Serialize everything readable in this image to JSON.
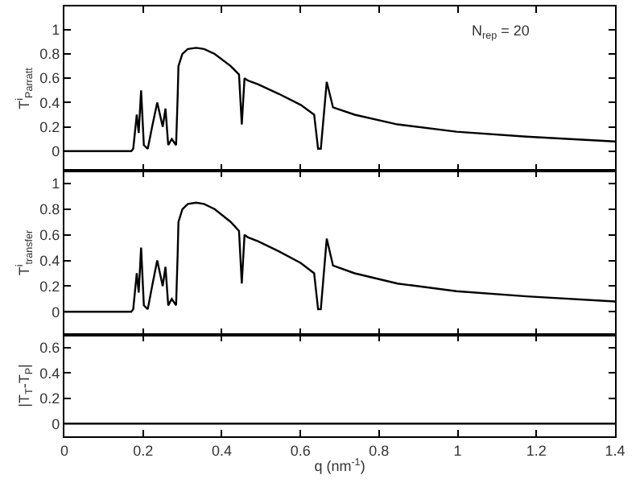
{
  "chart_data": [
    {
      "type": "line",
      "ylabel": "T$^{i}$$_{Parratt}$",
      "annotations": [
        "N$_{rep}$ = 20"
      ],
      "xlim": [
        0,
        1.4
      ],
      "xticks": [
        0,
        0.2,
        0.4,
        0.6,
        0.8,
        1,
        1.2,
        1.4
      ],
      "ylim": [
        -0.16,
        1.19
      ],
      "yticks": [
        0,
        0.2,
        0.4,
        0.6,
        0.8,
        1
      ],
      "tick_labels": "y",
      "series": [
        {
          "color": "#000000",
          "x": [
            0,
            0.17,
            0.175,
            0.184,
            0.189,
            0.195,
            0.202,
            0.212,
            0.223,
            0.236,
            0.25,
            0.257,
            0.264,
            0.273,
            0.284,
            0.288,
            0.29,
            0.3,
            0.314,
            0.335,
            0.355,
            0.382,
            0.423,
            0.444,
            0.451,
            0.458,
            0.467,
            0.492,
            0.546,
            0.601,
            0.635,
            0.645,
            0.652,
            0.667,
            0.683,
            0.738,
            0.847,
            0.997,
            1.175,
            1.4
          ],
          "values": [
            0,
            0,
            0.02,
            0.3,
            0.15,
            0.5,
            0.05,
            0.02,
            0.2,
            0.4,
            0.2,
            0.35,
            0.05,
            0.1,
            0.05,
            0.45,
            0.7,
            0.8,
            0.84,
            0.85,
            0.84,
            0.8,
            0.7,
            0.63,
            0.22,
            0.6,
            0.58,
            0.55,
            0.47,
            0.38,
            0.3,
            0.02,
            0.02,
            0.57,
            0.36,
            0.3,
            0.22,
            0.16,
            0.12,
            0.08
          ]
        }
      ]
    },
    {
      "type": "line",
      "ylabel": "T$^{i}$$_{transfer}$",
      "xlim": [
        0,
        1.4
      ],
      "xticks": [
        0,
        0.2,
        0.4,
        0.6,
        0.8,
        1,
        1.2,
        1.4
      ],
      "ylim": [
        -0.18,
        1.1
      ],
      "yticks": [
        0,
        0.2,
        0.4,
        0.6,
        0.8,
        1
      ],
      "tick_labels": "y",
      "series": [
        {
          "color": "#000000",
          "x": [
            0,
            0.17,
            0.175,
            0.184,
            0.189,
            0.195,
            0.202,
            0.212,
            0.223,
            0.236,
            0.25,
            0.257,
            0.264,
            0.273,
            0.284,
            0.288,
            0.29,
            0.3,
            0.314,
            0.335,
            0.355,
            0.382,
            0.423,
            0.444,
            0.451,
            0.458,
            0.467,
            0.492,
            0.546,
            0.601,
            0.635,
            0.645,
            0.652,
            0.667,
            0.683,
            0.738,
            0.847,
            0.997,
            1.175,
            1.4
          ],
          "values": [
            0,
            0,
            0.02,
            0.3,
            0.15,
            0.5,
            0.05,
            0.02,
            0.2,
            0.4,
            0.2,
            0.35,
            0.05,
            0.1,
            0.05,
            0.45,
            0.7,
            0.8,
            0.84,
            0.85,
            0.84,
            0.8,
            0.7,
            0.63,
            0.22,
            0.6,
            0.58,
            0.55,
            0.47,
            0.38,
            0.3,
            0.02,
            0.02,
            0.57,
            0.36,
            0.3,
            0.22,
            0.16,
            0.12,
            0.08
          ]
        }
      ]
    },
    {
      "type": "line",
      "ylabel": "|T$_{T}$-T$_{P}$|",
      "xlabel": "q (nm$^{-1}$)",
      "xlim": [
        0,
        1.4
      ],
      "xticks": [
        0,
        0.2,
        0.4,
        0.6,
        0.8,
        1,
        1.2,
        1.4
      ],
      "ylim": [
        -0.1,
        0.7
      ],
      "yticks": [
        0,
        0.2,
        0.4,
        0.6
      ],
      "series": [
        {
          "color": "#000000",
          "x": [
            0,
            1.4
          ],
          "values": [
            0,
            0
          ]
        }
      ]
    }
  ]
}
